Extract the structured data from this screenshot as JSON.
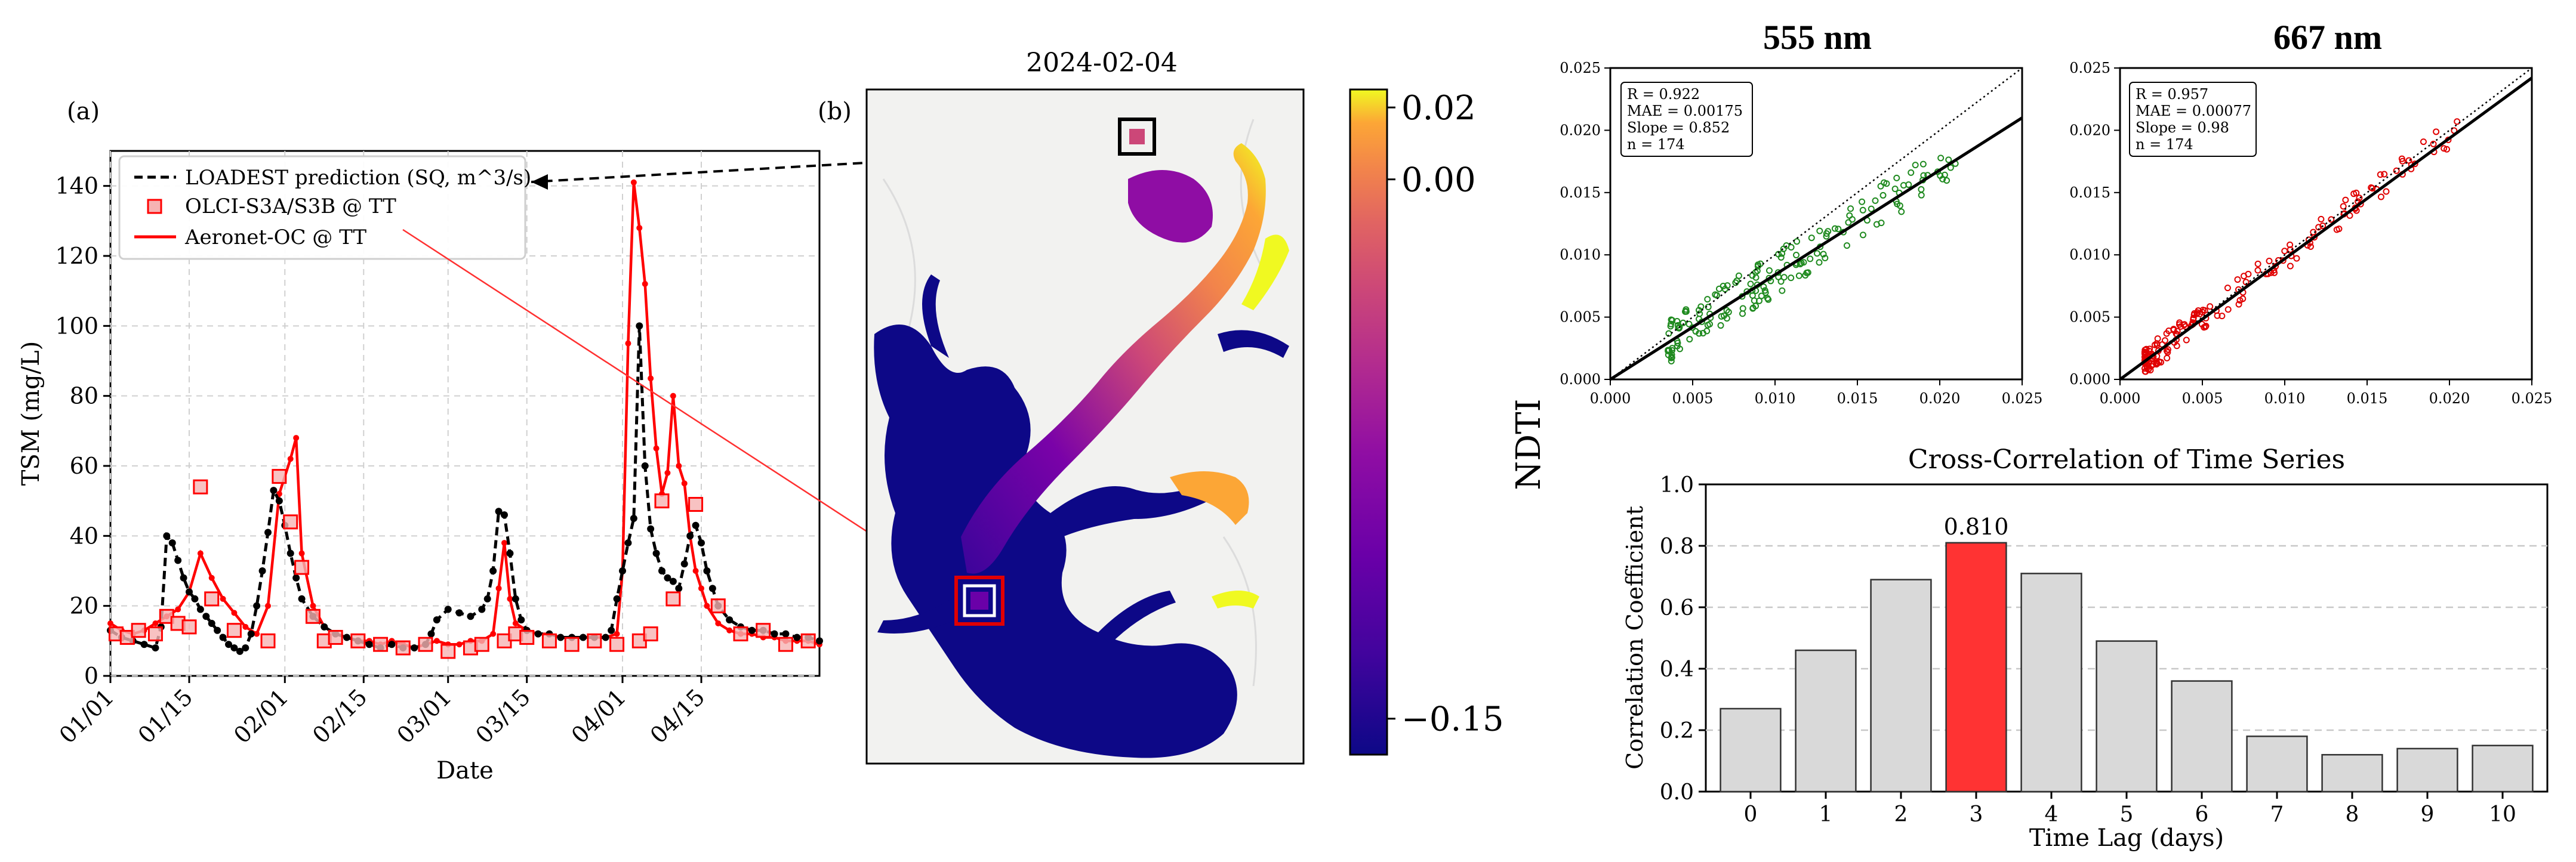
{
  "figure": {
    "panel_a_label": "(a)",
    "panel_b_label": "(b)",
    "map_date": "2024-02-04",
    "ndti_label": "NDTI"
  },
  "colorbar": {
    "ticks": [
      "0.02",
      "0.00",
      "−0.15"
    ],
    "tick_values": [
      0.02,
      0.0,
      -0.15
    ],
    "vmin": -0.16,
    "vmax": 0.025,
    "colormap": "plasma"
  },
  "chart_data": [
    {
      "id": "tsm",
      "type": "line",
      "title": "",
      "xlabel": "Date",
      "ylabel": "TSM (mg/L)",
      "ylim": [
        0,
        150
      ],
      "yticks": [
        0,
        20,
        40,
        60,
        80,
        100,
        120,
        140
      ],
      "xlim": [
        0,
        126
      ],
      "xticks": [
        {
          "x": 0,
          "label": "01/01"
        },
        {
          "x": 14,
          "label": "01/15"
        },
        {
          "x": 31,
          "label": "02/01"
        },
        {
          "x": 45,
          "label": "02/15"
        },
        {
          "x": 60,
          "label": "03/01"
        },
        {
          "x": 74,
          "label": "03/15"
        },
        {
          "x": 91,
          "label": "04/01"
        },
        {
          "x": 105,
          "label": "04/15"
        }
      ],
      "grid": true,
      "legend_position": "top-left",
      "series": [
        {
          "name": "LOADEST prediction (SQ, m^3/s)",
          "style": "dashed-black-dots",
          "color": "#000000",
          "x": [
            0,
            2,
            4,
            6,
            8,
            9,
            10,
            11,
            12,
            13,
            14,
            15,
            16,
            17,
            18,
            19,
            20,
            21,
            22,
            23,
            24,
            25,
            26,
            27,
            28,
            29,
            30,
            31,
            32,
            33,
            34,
            36,
            38,
            40,
            42,
            44,
            46,
            48,
            50,
            52,
            54,
            56,
            57,
            58,
            60,
            62,
            64,
            66,
            67,
            68,
            69,
            70,
            71,
            72,
            73,
            74,
            76,
            78,
            80,
            82,
            84,
            86,
            88,
            89,
            90,
            91,
            92,
            93,
            94,
            95,
            96,
            97,
            98,
            99,
            100,
            101,
            102,
            103,
            104,
            105,
            106,
            107,
            108,
            110,
            112,
            114,
            116,
            118,
            120,
            122,
            124,
            126
          ],
          "y": [
            13,
            11,
            10,
            9,
            8,
            14,
            40,
            38,
            33,
            28,
            24,
            22,
            19,
            17,
            15,
            13,
            11,
            9,
            8,
            7,
            8,
            12,
            20,
            30,
            41,
            53,
            50,
            43,
            35,
            28,
            22,
            17,
            14,
            12,
            11,
            10,
            9,
            8,
            9,
            8,
            8,
            9,
            12,
            16,
            19,
            18,
            17,
            19,
            22,
            30,
            47,
            46,
            35,
            22,
            16,
            13,
            12,
            12,
            11,
            11,
            11,
            11,
            11,
            13,
            22,
            30,
            38,
            45,
            100,
            60,
            42,
            35,
            30,
            28,
            27,
            25,
            32,
            40,
            43,
            38,
            30,
            25,
            20,
            16,
            14,
            13,
            13,
            12,
            12,
            11,
            11,
            10
          ]
        },
        {
          "name": "OLCI-S3A/S3B @ TT",
          "style": "square-markers",
          "color": "#ff0000",
          "x": [
            1,
            3,
            5,
            8,
            10,
            12,
            14,
            16,
            18,
            22,
            28,
            30,
            32,
            34,
            36,
            38,
            40,
            44,
            48,
            52,
            56,
            60,
            64,
            66,
            70,
            72,
            74,
            78,
            82,
            86,
            90,
            94,
            96,
            98,
            100,
            104,
            108,
            112,
            116,
            120,
            124
          ],
          "y": [
            12,
            11,
            13,
            12,
            17,
            15,
            14,
            54,
            22,
            13,
            10,
            57,
            44,
            31,
            17,
            10,
            11,
            10,
            9,
            8,
            9,
            7,
            8,
            9,
            10,
            12,
            11,
            10,
            9,
            10,
            9,
            10,
            12,
            50,
            22,
            49,
            20,
            12,
            13,
            9,
            10
          ]
        },
        {
          "name": "Aeronet-OC @ TT",
          "style": "red-line-dots",
          "color": "#ff0000",
          "x": [
            0,
            2,
            4,
            6,
            8,
            10,
            12,
            14,
            16,
            18,
            20,
            22,
            24,
            26,
            28,
            30,
            32,
            33,
            34,
            36,
            38,
            40,
            42,
            44,
            46,
            48,
            50,
            52,
            54,
            56,
            58,
            60,
            62,
            64,
            66,
            68,
            69,
            70,
            71,
            72,
            74,
            76,
            78,
            80,
            82,
            84,
            86,
            88,
            90,
            91,
            92,
            93,
            94,
            95,
            96,
            97,
            98,
            99,
            100,
            101,
            102,
            103,
            104,
            105,
            106,
            108,
            110,
            112,
            114,
            116,
            118,
            120,
            122,
            124,
            126
          ],
          "y": [
            15,
            13,
            12,
            13,
            15,
            17,
            19,
            24,
            35,
            28,
            22,
            18,
            14,
            12,
            20,
            52,
            62,
            68,
            35,
            20,
            14,
            12,
            11,
            10,
            10,
            9,
            10,
            9,
            8,
            9,
            10,
            9,
            9,
            10,
            10,
            12,
            25,
            38,
            22,
            15,
            13,
            12,
            12,
            11,
            11,
            11,
            11,
            11,
            12,
            30,
            95,
            141,
            128,
            112,
            85,
            65,
            52,
            58,
            80,
            60,
            55,
            40,
            30,
            25,
            20,
            15,
            13,
            12,
            12,
            11,
            11,
            10,
            10,
            10,
            9
          ]
        }
      ]
    },
    {
      "id": "scatter555",
      "type": "scatter",
      "title": "555 nm",
      "xlim": [
        0,
        0.025
      ],
      "ylim": [
        0,
        0.025
      ],
      "ticks": [
        "0.000",
        "0.005",
        "0.010",
        "0.015",
        "0.020",
        "0.025"
      ],
      "stats": [
        "R = 0.922",
        "MAE = 0.00175",
        "Slope = 0.852",
        "n = 174"
      ],
      "color": "#1f8a1f",
      "fit": {
        "x": [
          0.0,
          0.025
        ],
        "y": [
          0.0,
          0.021
        ]
      },
      "one_to_one": true
    },
    {
      "id": "scatter667",
      "type": "scatter",
      "title": "667 nm",
      "xlim": [
        0,
        0.025
      ],
      "ylim": [
        0,
        0.025
      ],
      "ticks": [
        "0.000",
        "0.005",
        "0.010",
        "0.015",
        "0.020",
        "0.025"
      ],
      "stats": [
        "R = 0.957",
        "MAE = 0.00077",
        "Slope = 0.98",
        "n = 174"
      ],
      "color": "#e00000",
      "fit": {
        "x": [
          0.0,
          0.025
        ],
        "y": [
          0.0,
          0.0242
        ]
      },
      "one_to_one": true
    },
    {
      "id": "xcorr",
      "type": "bar",
      "title": "Cross-Correlation of Time Series",
      "xlabel": "Time Lag (days)",
      "ylabel": "Correlation Coefficient",
      "categories": [
        "0",
        "1",
        "2",
        "3",
        "4",
        "5",
        "6",
        "7",
        "8",
        "9",
        "10"
      ],
      "values": [
        0.27,
        0.46,
        0.69,
        0.81,
        0.71,
        0.49,
        0.36,
        0.18,
        0.12,
        0.14,
        0.15
      ],
      "ylim": [
        0,
        1.0
      ],
      "yticks": [
        "0.0",
        "0.2",
        "0.4",
        "0.6",
        "0.8",
        "1.0"
      ],
      "highlight_index": 3,
      "highlight_label": "0.810",
      "bar_color": "#d9d9d9",
      "highlight_color": "#ff3333",
      "grid": "y-dashed"
    }
  ]
}
